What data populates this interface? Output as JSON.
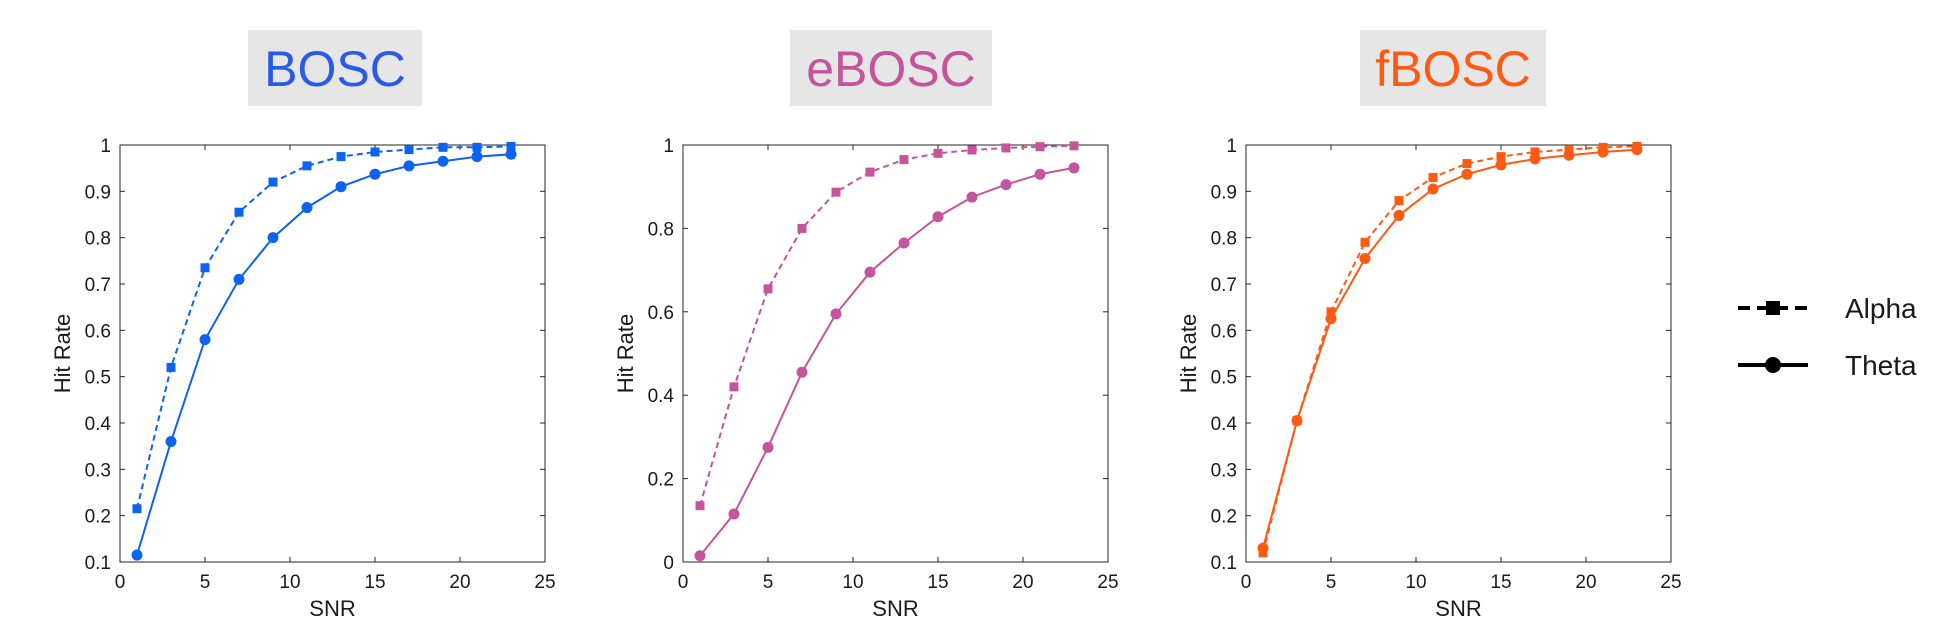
{
  "chart_data": [
    {
      "type": "line",
      "title": "BOSC",
      "title_color": "#2b5be6",
      "color": "#0b63f0",
      "xlabel": "SNR",
      "ylabel": "Hit Rate",
      "xlim": [
        0,
        25
      ],
      "ylim": [
        0.1,
        1
      ],
      "xticks": [
        0,
        5,
        10,
        15,
        20,
        25
      ],
      "yticks": [
        0.1,
        0.2,
        0.3,
        0.4,
        0.5,
        0.6,
        0.7,
        0.8,
        0.9,
        1
      ],
      "x": [
        1,
        3,
        5,
        7,
        9,
        11,
        13,
        15,
        17,
        19,
        21,
        23
      ],
      "series": [
        {
          "name": "Alpha",
          "style": "dashed",
          "marker": "square",
          "values": [
            0.215,
            0.52,
            0.735,
            0.855,
            0.92,
            0.955,
            0.975,
            0.985,
            0.99,
            0.995,
            0.995,
            0.997
          ]
        },
        {
          "name": "Theta",
          "style": "solid",
          "marker": "circle",
          "values": [
            0.115,
            0.36,
            0.58,
            0.71,
            0.8,
            0.865,
            0.91,
            0.937,
            0.955,
            0.965,
            0.975,
            0.98
          ]
        }
      ]
    },
    {
      "type": "line",
      "title": "eBOSC",
      "title_color": "#c4549b",
      "color": "#c4549b",
      "xlabel": "SNR",
      "ylabel": "Hit Rate",
      "xlim": [
        0,
        25
      ],
      "ylim": [
        0,
        1
      ],
      "xticks": [
        0,
        5,
        10,
        15,
        20,
        25
      ],
      "yticks": [
        0,
        0.2,
        0.4,
        0.6,
        0.8,
        1
      ],
      "x": [
        1,
        3,
        5,
        7,
        9,
        11,
        13,
        15,
        17,
        19,
        21,
        23
      ],
      "series": [
        {
          "name": "Alpha",
          "style": "dashed",
          "marker": "square",
          "values": [
            0.135,
            0.42,
            0.655,
            0.8,
            0.887,
            0.935,
            0.965,
            0.98,
            0.988,
            0.993,
            0.996,
            0.998
          ]
        },
        {
          "name": "Theta",
          "style": "solid",
          "marker": "circle",
          "values": [
            0.015,
            0.115,
            0.275,
            0.455,
            0.595,
            0.695,
            0.765,
            0.828,
            0.875,
            0.905,
            0.93,
            0.945
          ]
        }
      ]
    },
    {
      "type": "line",
      "title": "fBOSC",
      "title_color": "#ff5a12",
      "color": "#ff5a12",
      "xlabel": "SNR",
      "ylabel": "Hit Rate",
      "xlim": [
        0,
        25
      ],
      "ylim": [
        0.1,
        1
      ],
      "xticks": [
        0,
        5,
        10,
        15,
        20,
        25
      ],
      "yticks": [
        0.1,
        0.2,
        0.3,
        0.4,
        0.5,
        0.6,
        0.7,
        0.8,
        0.9,
        1
      ],
      "x": [
        1,
        3,
        5,
        7,
        9,
        11,
        13,
        15,
        17,
        19,
        21,
        23
      ],
      "series": [
        {
          "name": "Alpha",
          "style": "dashed",
          "marker": "square",
          "values": [
            0.12,
            0.405,
            0.64,
            0.79,
            0.88,
            0.93,
            0.96,
            0.975,
            0.985,
            0.99,
            0.995,
            0.997
          ]
        },
        {
          "name": "Theta",
          "style": "solid",
          "marker": "circle",
          "values": [
            0.13,
            0.405,
            0.625,
            0.755,
            0.848,
            0.905,
            0.937,
            0.957,
            0.97,
            0.978,
            0.985,
            0.99
          ]
        }
      ]
    }
  ],
  "legend": {
    "placement": "right",
    "color": "#000000",
    "items": [
      {
        "label": "Alpha",
        "style": "dashed",
        "marker": "square"
      },
      {
        "label": "Theta",
        "style": "solid",
        "marker": "circle"
      }
    ]
  }
}
